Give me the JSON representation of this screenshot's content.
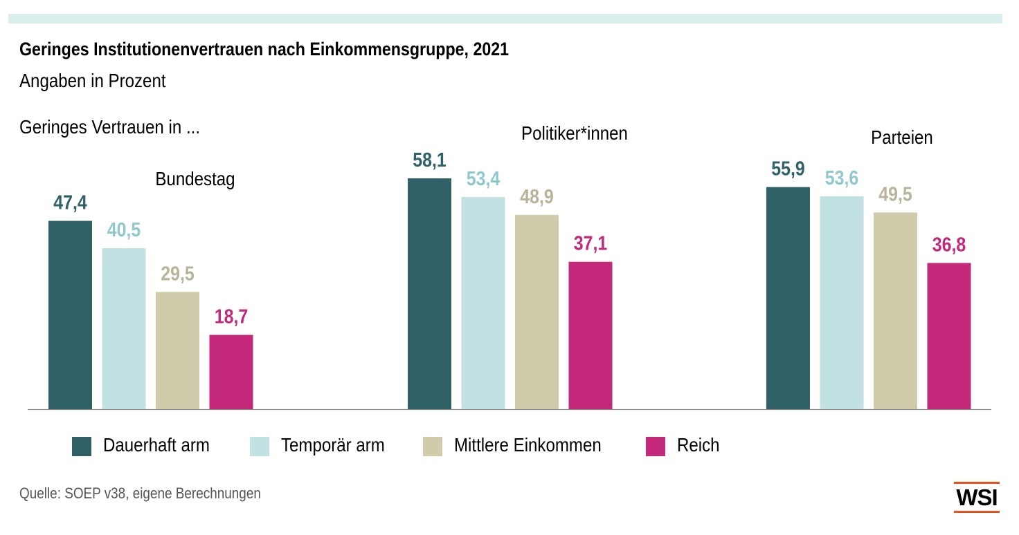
{
  "title": "Geringes Institutionenvertrauen nach Einkommensgruppe, 2021",
  "subtitle": "Angaben in Prozent",
  "group_intro": "Geringes Vertrauen in ...",
  "source": "Quelle: SOEP v38, eigene Berechnungen",
  "logo": {
    "text": "WSI",
    "accent_color": "#e8501c"
  },
  "colors": {
    "Dauerhaft arm": "#2f6167",
    "Temporär arm": "#c1e1e2",
    "Mittlere Einkommen": "#d0cbab",
    "Reich": "#c4287a"
  },
  "label_colors": {
    "Dauerhaft arm": "#2f6167",
    "Temporär arm": "#8fc9cf",
    "Mittlere Einkommen": "#b9b39a",
    "Reich": "#c4287a"
  },
  "chart_data": {
    "type": "bar",
    "title": "Geringes Institutionenvertrauen nach Einkommensgruppe, 2021",
    "subtitle": "Angaben in Prozent",
    "unit": "Prozent",
    "categories": [
      "Bundestag",
      "Politiker*innen",
      "Parteien"
    ],
    "series": [
      {
        "name": "Dauerhaft arm",
        "values": [
          47.4,
          58.1,
          55.9
        ],
        "labels": [
          "47,4",
          "58,1",
          "55,9"
        ]
      },
      {
        "name": "Temporär arm",
        "values": [
          40.5,
          53.4,
          53.6
        ],
        "labels": [
          "40,5",
          "53,4",
          "53,6"
        ]
      },
      {
        "name": "Mittlere Einkommen",
        "values": [
          29.5,
          48.9,
          49.5
        ],
        "labels": [
          "29,5",
          "48,9",
          "49,5"
        ]
      },
      {
        "name": "Reich",
        "values": [
          18.7,
          37.1,
          36.8
        ],
        "labels": [
          "18,7",
          "37,1",
          "36,8"
        ]
      }
    ],
    "ylim": [
      0,
      60
    ],
    "grid": false,
    "legend": "bottom",
    "xlabel": "",
    "ylabel": ""
  }
}
